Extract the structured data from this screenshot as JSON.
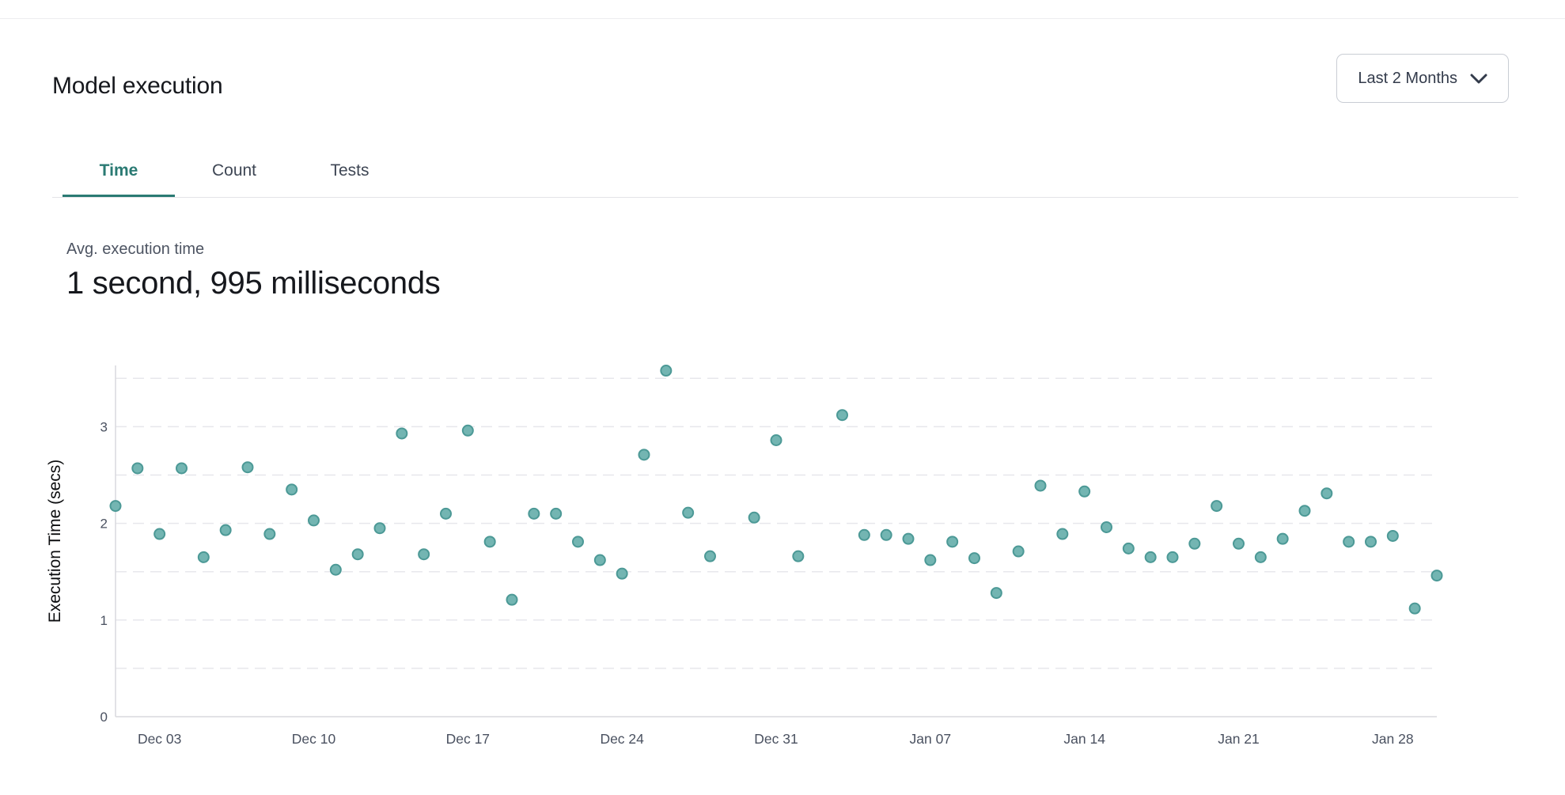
{
  "header": {
    "title": "Model execution",
    "range_selector": {
      "label": "Last 2 Months",
      "icon": "chevron-down-icon"
    }
  },
  "tabs": [
    {
      "label": "Time",
      "active": true
    },
    {
      "label": "Count",
      "active": false
    },
    {
      "label": "Tests",
      "active": false
    }
  ],
  "stat": {
    "label": "Avg. execution time",
    "value": "1 second, 995 milliseconds"
  },
  "colors": {
    "accent_teal": "#2a7a73",
    "point_fill": "#73b5b2",
    "point_stroke": "#4c9996",
    "gridline": "#e7e7ec",
    "axis_line": "#d9d9de",
    "tick_text": "#4a5160",
    "axis_title_text": "#0c0d0f"
  },
  "chart_data": {
    "type": "scatter",
    "title": "",
    "xlabel": "",
    "ylabel": "Execution Time (secs)",
    "ylim": [
      0,
      3.63
    ],
    "y_ticks": [
      0,
      1,
      2,
      3
    ],
    "y_gridline_step": 0.5,
    "grid": "dashed-horizontal",
    "legend": "none",
    "x_ticks": [
      "Dec 03",
      "Dec 10",
      "Dec 17",
      "Dec 24",
      "Dec 31",
      "Jan 07",
      "Jan 14",
      "Jan 21",
      "Jan 28"
    ],
    "x_range_days": [
      "Dec 01",
      "Jan 30"
    ],
    "missing_days": [
      "Dec 29",
      "Jan 02"
    ],
    "points": [
      {
        "date": "Dec 01",
        "secs": 2.18
      },
      {
        "date": "Dec 02",
        "secs": 2.57
      },
      {
        "date": "Dec 03",
        "secs": 1.89
      },
      {
        "date": "Dec 04",
        "secs": 2.57
      },
      {
        "date": "Dec 05",
        "secs": 1.65
      },
      {
        "date": "Dec 06",
        "secs": 1.93
      },
      {
        "date": "Dec 07",
        "secs": 2.58
      },
      {
        "date": "Dec 08",
        "secs": 1.89
      },
      {
        "date": "Dec 09",
        "secs": 2.35
      },
      {
        "date": "Dec 10",
        "secs": 2.03
      },
      {
        "date": "Dec 11",
        "secs": 1.52
      },
      {
        "date": "Dec 12",
        "secs": 1.68
      },
      {
        "date": "Dec 13",
        "secs": 1.95
      },
      {
        "date": "Dec 14",
        "secs": 2.93
      },
      {
        "date": "Dec 15",
        "secs": 1.68
      },
      {
        "date": "Dec 16",
        "secs": 2.1
      },
      {
        "date": "Dec 17",
        "secs": 2.96
      },
      {
        "date": "Dec 18",
        "secs": 1.81
      },
      {
        "date": "Dec 19",
        "secs": 1.21
      },
      {
        "date": "Dec 20",
        "secs": 2.1
      },
      {
        "date": "Dec 21",
        "secs": 2.1
      },
      {
        "date": "Dec 22",
        "secs": 1.81
      },
      {
        "date": "Dec 23",
        "secs": 1.62
      },
      {
        "date": "Dec 24",
        "secs": 1.48
      },
      {
        "date": "Dec 25",
        "secs": 2.71
      },
      {
        "date": "Dec 26",
        "secs": 3.58
      },
      {
        "date": "Dec 27",
        "secs": 2.11
      },
      {
        "date": "Dec 28",
        "secs": 1.66
      },
      {
        "date": "Dec 30",
        "secs": 2.06
      },
      {
        "date": "Dec 31",
        "secs": 2.86
      },
      {
        "date": "Jan 01",
        "secs": 1.66
      },
      {
        "date": "Jan 03",
        "secs": 3.12
      },
      {
        "date": "Jan 04",
        "secs": 1.88
      },
      {
        "date": "Jan 05",
        "secs": 1.88
      },
      {
        "date": "Jan 06",
        "secs": 1.84
      },
      {
        "date": "Jan 07",
        "secs": 1.62
      },
      {
        "date": "Jan 08",
        "secs": 1.81
      },
      {
        "date": "Jan 09",
        "secs": 1.64
      },
      {
        "date": "Jan 10",
        "secs": 1.28
      },
      {
        "date": "Jan 11",
        "secs": 1.71
      },
      {
        "date": "Jan 12",
        "secs": 2.39
      },
      {
        "date": "Jan 13",
        "secs": 1.89
      },
      {
        "date": "Jan 14",
        "secs": 2.33
      },
      {
        "date": "Jan 15",
        "secs": 1.96
      },
      {
        "date": "Jan 16",
        "secs": 1.74
      },
      {
        "date": "Jan 17",
        "secs": 1.65
      },
      {
        "date": "Jan 18",
        "secs": 1.65
      },
      {
        "date": "Jan 19",
        "secs": 1.79
      },
      {
        "date": "Jan 20",
        "secs": 2.18
      },
      {
        "date": "Jan 21",
        "secs": 1.79
      },
      {
        "date": "Jan 22",
        "secs": 1.65
      },
      {
        "date": "Jan 23",
        "secs": 1.84
      },
      {
        "date": "Jan 24",
        "secs": 2.13
      },
      {
        "date": "Jan 25",
        "secs": 2.31
      },
      {
        "date": "Jan 26",
        "secs": 1.81
      },
      {
        "date": "Jan 27",
        "secs": 1.81
      },
      {
        "date": "Jan 28",
        "secs": 1.87
      },
      {
        "date": "Jan 29",
        "secs": 1.12
      },
      {
        "date": "Jan 30",
        "secs": 1.46
      }
    ]
  }
}
